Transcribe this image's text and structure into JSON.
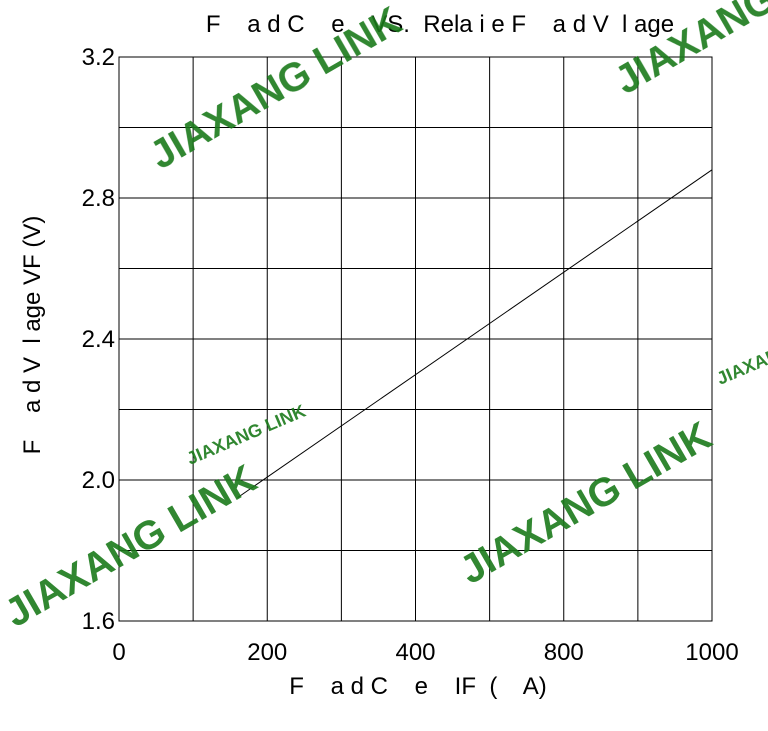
{
  "chart_data": {
    "type": "line",
    "title": "F    a d C    e    VS.  Rela i e F    a d V  l age",
    "xlabel": "F    a d C    e    IF  (    A)",
    "ylabel": "F    a d V  l age VF (V)",
    "x_ticks": [
      "0",
      "200",
      "400",
      "800",
      "1000"
    ],
    "y_ticks": [
      "3.2",
      "2.8",
      "2.4",
      "2.0",
      "1.6"
    ],
    "x_grid_divisions": 8,
    "y_grid_divisions": 8,
    "xlim": [
      0,
      1000
    ],
    "ylim": [
      1.6,
      3.2
    ],
    "grid": true,
    "series": [
      {
        "x": [
          200,
          1000
        ],
        "y": [
          1.95,
          2.88
        ]
      }
    ],
    "line_color": "#000000",
    "grid_color": "#000000"
  },
  "watermark": {
    "text": "JIAXANG LINK",
    "color": "#1a7a1a"
  }
}
